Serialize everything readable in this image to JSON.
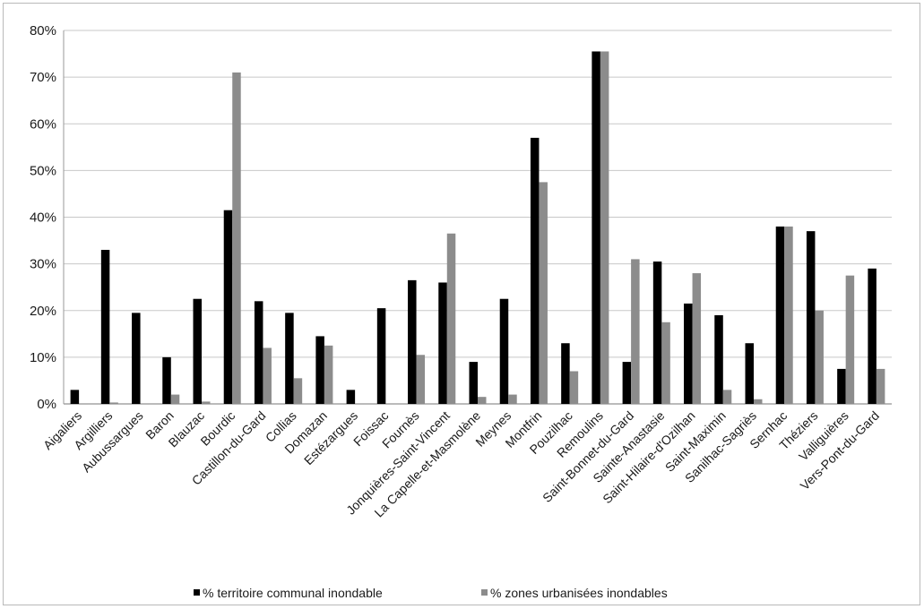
{
  "chart_data": {
    "type": "bar",
    "categories": [
      "Aigaliers",
      "Argilliers",
      "Aubussargues",
      "Baron",
      "Blauzac",
      "Bourdic",
      "Castillon-du-Gard",
      "Collias",
      "Domazan",
      "Estézargues",
      "Foissac",
      "Fournès",
      "Jonquières-Saint-Vincent",
      "La Capelle-et-Masmolène",
      "Meynes",
      "Montfrin",
      "Pouzilhac",
      "Remoulins",
      "Saint-Bonnet-du-Gard",
      "Sainte-Anastasie",
      "Saint-Hilaire-d'Ozilhan",
      "Saint-Maximin",
      "Sanilhac-Sagriès",
      "Sernhac",
      "Théziers",
      "Valliguières",
      "Vers-Pont-du-Gard"
    ],
    "series": [
      {
        "name": "% territoire communal inondable",
        "color": "#000000",
        "values": [
          3,
          33,
          19.5,
          10,
          22.5,
          41.5,
          22,
          19.5,
          14.5,
          3,
          20.5,
          26.5,
          26,
          9,
          22.5,
          57,
          13,
          75.5,
          9,
          30.5,
          21.5,
          19,
          13,
          38,
          37,
          7.5,
          29
        ]
      },
      {
        "name": "% zones urbanisées inondables",
        "color": "#8c8c8c",
        "values": [
          0,
          0.3,
          0,
          2,
          0.5,
          71,
          12,
          5.5,
          12.5,
          0,
          0,
          10.5,
          36.5,
          1.5,
          2,
          47.5,
          7,
          75.5,
          31,
          17.5,
          28,
          3,
          1,
          38,
          20,
          27.5,
          7.5
        ]
      }
    ],
    "yticks": [
      "0%",
      "10%",
      "20%",
      "30%",
      "40%",
      "50%",
      "60%",
      "70%",
      "80%"
    ],
    "ylim": [
      0,
      80
    ],
    "grid": true,
    "legend_position": "bottom"
  }
}
